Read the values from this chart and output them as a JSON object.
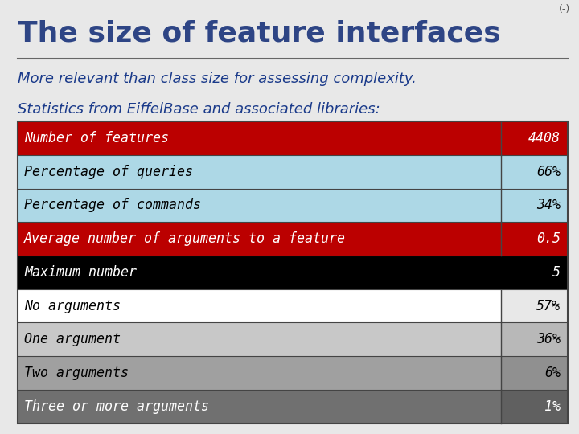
{
  "title": "The size of feature interfaces",
  "title_color": "#2E4585",
  "subtitle": "More relevant than class size for assessing complexity.",
  "subtitle_color": "#1a3a8a",
  "stats_label": "Statistics from EiffelBase and associated libraries:",
  "stats_label_color": "#1a3a8a",
  "background_color": "#e8e8e8",
  "rows": [
    {
      "label": "Number of features",
      "value": "4408",
      "row_bg": "#bb0000",
      "value_bg": "#bb0000",
      "text_color": "#ffffff",
      "value_color": "#ffffff",
      "full_width": false
    },
    {
      "label": "Percentage of queries",
      "value": "66%",
      "row_bg": "#add8e6",
      "value_bg": "#add8e6",
      "text_color": "#000000",
      "value_color": "#000000",
      "full_width": false
    },
    {
      "label": "Percentage of commands",
      "value": "34%",
      "row_bg": "#add8e6",
      "value_bg": "#add8e6",
      "text_color": "#000000",
      "value_color": "#000000",
      "full_width": false
    },
    {
      "label": "Average number of arguments to a feature",
      "value": "0.5",
      "row_bg": "#bb0000",
      "value_bg": "#bb0000",
      "text_color": "#ffffff",
      "value_color": "#ffffff",
      "full_width": false
    },
    {
      "label": "Maximum number",
      "value": "5",
      "row_bg": "#000000",
      "value_bg": "#000000",
      "text_color": "#ffffff",
      "value_color": "#ffffff",
      "full_width": true
    },
    {
      "label": "No arguments",
      "value": "57%",
      "row_bg": "#ffffff",
      "value_bg": "#e8e8e8",
      "text_color": "#000000",
      "value_color": "#000000",
      "full_width": false
    },
    {
      "label": "One argument",
      "value": "36%",
      "row_bg": "#c8c8c8",
      "value_bg": "#b8b8b8",
      "text_color": "#000000",
      "value_color": "#000000",
      "full_width": false
    },
    {
      "label": "Two arguments",
      "value": "6%",
      "row_bg": "#a0a0a0",
      "value_bg": "#909090",
      "text_color": "#000000",
      "value_color": "#000000",
      "full_width": false
    },
    {
      "label": "Three or more arguments",
      "value": "1%",
      "row_bg": "#707070",
      "value_bg": "#606060",
      "text_color": "#ffffff",
      "value_color": "#ffffff",
      "full_width": false
    }
  ],
  "font_size_title": 26,
  "font_size_subtitle": 13,
  "font_size_table": 12,
  "divider_color": "#666666",
  "figsize": [
    7.2,
    5.4
  ],
  "dpi": 100
}
